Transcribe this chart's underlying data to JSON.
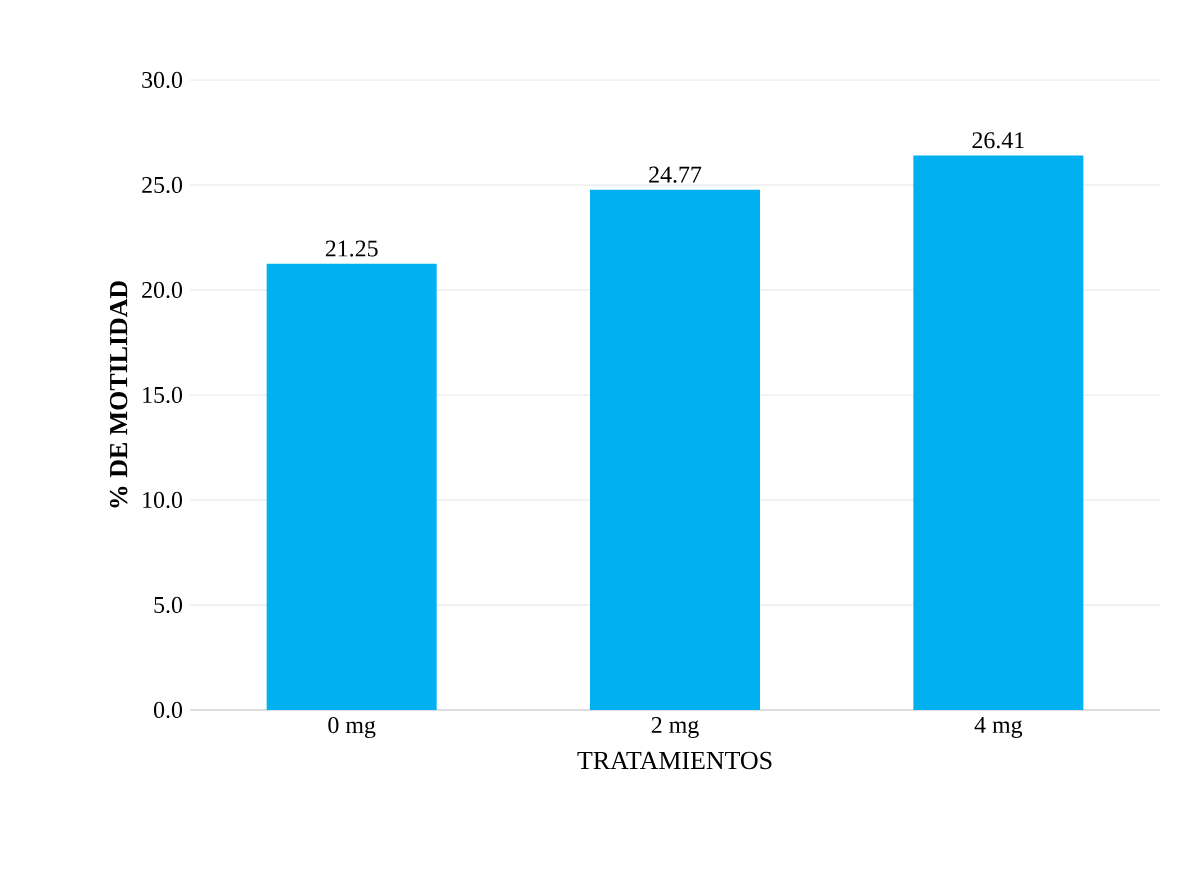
{
  "chart_data": {
    "type": "bar",
    "xlabel": "TRATAMIENTOS",
    "ylabel": "% DE MOTILIDAD",
    "categories": [
      "0 mg",
      "2 mg",
      "4 mg"
    ],
    "values": [
      21.25,
      24.77,
      26.41
    ],
    "color": "#00b0f0",
    "ylim": [
      0,
      30
    ],
    "yticks": [
      {
        "value": 0,
        "label": "0.0"
      },
      {
        "value": 5,
        "label": "5.0"
      },
      {
        "value": 10,
        "label": "10.0"
      },
      {
        "value": 15,
        "label": "15.0"
      },
      {
        "value": 20,
        "label": "20.0"
      },
      {
        "value": 25,
        "label": "25.0"
      },
      {
        "value": 30,
        "label": "30.0"
      }
    ],
    "grid": "y",
    "data_labels": true
  }
}
